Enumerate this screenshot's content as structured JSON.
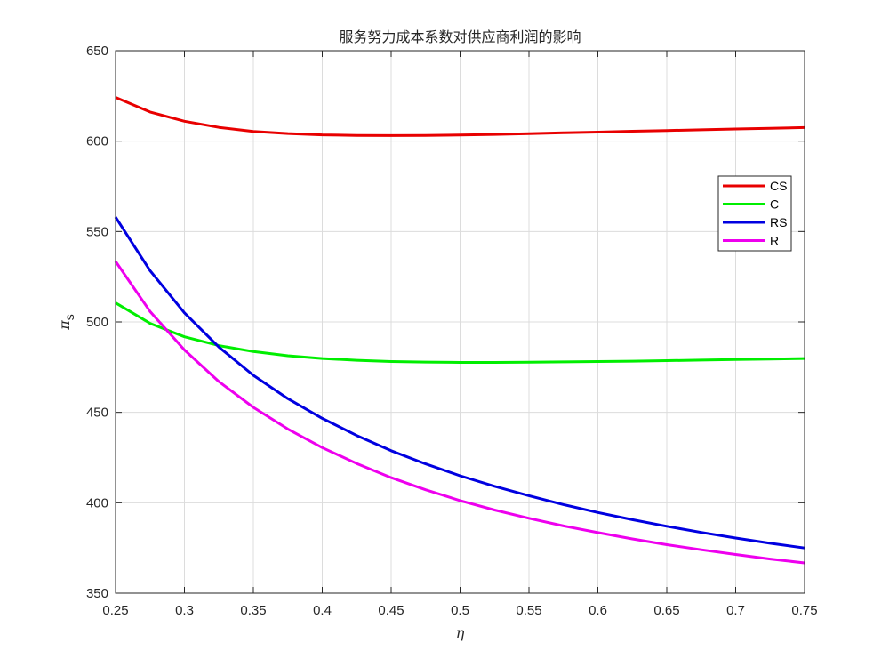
{
  "chart_data": {
    "type": "line",
    "title": "服务努力成本系数对供应商利润的影响",
    "xlabel": "η",
    "ylabel": "π",
    "ylabel_subscript": "s",
    "xlim": [
      0.25,
      0.75
    ],
    "ylim": [
      350,
      650
    ],
    "xticks": [
      0.25,
      0.3,
      0.35,
      0.4,
      0.45,
      0.5,
      0.55,
      0.6,
      0.65,
      0.7,
      0.75
    ],
    "xtick_labels": [
      "0.25",
      "0.3",
      "0.35",
      "0.4",
      "0.45",
      "0.5",
      "0.55",
      "0.6",
      "0.65",
      "0.7",
      "0.75"
    ],
    "yticks": [
      350,
      400,
      450,
      500,
      550,
      600,
      650
    ],
    "ytick_labels": [
      "350",
      "400",
      "450",
      "500",
      "550",
      "600",
      "650"
    ],
    "grid": true,
    "legend_position": "right",
    "x": [
      0.25,
      0.275,
      0.3,
      0.325,
      0.35,
      0.375,
      0.4,
      0.425,
      0.45,
      0.475,
      0.5,
      0.525,
      0.55,
      0.575,
      0.6,
      0.625,
      0.65,
      0.675,
      0.7,
      0.725,
      0.75
    ],
    "series": [
      {
        "name": "CS",
        "color": "#e80000",
        "values": [
          624.2,
          616.1,
          611.0,
          607.6,
          605.4,
          604.2,
          603.5,
          603.2,
          603.1,
          603.2,
          603.4,
          603.7,
          604.1,
          604.6,
          605.0,
          605.5,
          605.9,
          606.3,
          606.7,
          607.1,
          607.5
        ]
      },
      {
        "name": "C",
        "color": "#00ee00",
        "values": [
          510.5,
          499.2,
          491.8,
          486.9,
          483.6,
          481.3,
          479.8,
          478.8,
          478.1,
          477.8,
          477.6,
          477.6,
          477.7,
          477.9,
          478.1,
          478.3,
          478.6,
          478.9,
          479.2,
          479.5,
          479.8
        ]
      },
      {
        "name": "RS",
        "color": "#0000e0",
        "values": [
          558.0,
          528.4,
          505.0,
          486.1,
          470.5,
          457.6,
          446.7,
          437.2,
          428.8,
          421.5,
          414.9,
          409.1,
          403.9,
          399.0,
          394.6,
          390.6,
          387.0,
          383.6,
          380.5,
          377.6,
          375.0
        ]
      },
      {
        "name": "R",
        "color": "#ee00ee",
        "values": [
          533.5,
          505.8,
          484.5,
          467.0,
          452.8,
          440.8,
          430.5,
          421.7,
          413.9,
          407.2,
          401.2,
          396.0,
          391.4,
          387.2,
          383.5,
          380.0,
          376.8,
          374.0,
          371.4,
          368.9,
          366.7
        ]
      }
    ]
  }
}
